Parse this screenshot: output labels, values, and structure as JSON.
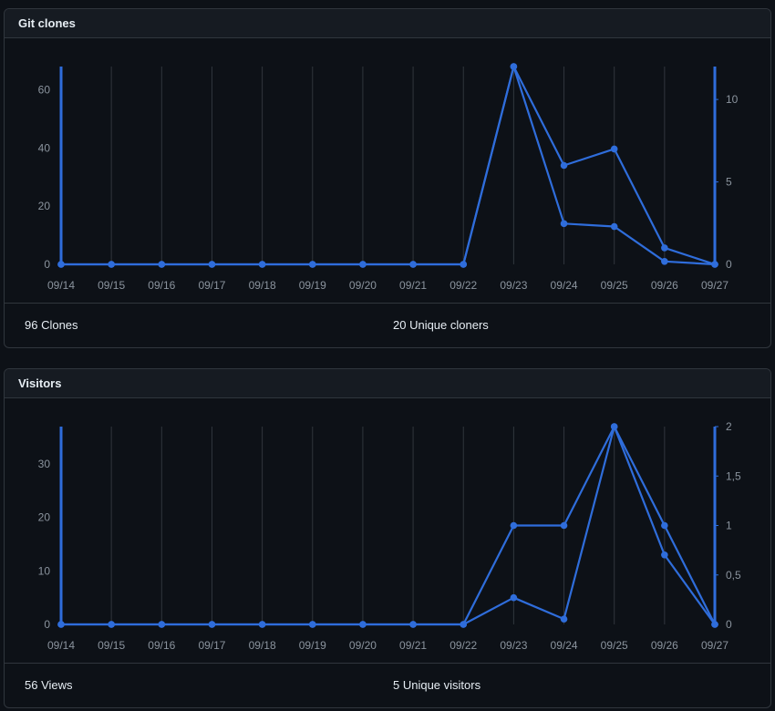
{
  "colors": {
    "line": "#2f6ddb",
    "grid": "#30363d",
    "text": "#8b949e",
    "bg": "#0d1117",
    "panel_header": "#161b22"
  },
  "clones_panel": {
    "title": "Git clones",
    "stat_total": "96 Clones",
    "stat_unique": "20 Unique cloners"
  },
  "visitors_panel": {
    "title": "Visitors",
    "stat_total": "56 Views",
    "stat_unique": "5 Unique visitors"
  },
  "chart_data": [
    {
      "type": "line",
      "categories": [
        "09/14",
        "09/15",
        "09/16",
        "09/17",
        "09/18",
        "09/19",
        "09/20",
        "09/21",
        "09/22",
        "09/23",
        "09/24",
        "09/25",
        "09/26",
        "09/27"
      ],
      "series": [
        {
          "axis": "left",
          "values": [
            0,
            0,
            0,
            0,
            0,
            0,
            0,
            0,
            0,
            68,
            14,
            13,
            1,
            0
          ]
        },
        {
          "axis": "right",
          "values": [
            0,
            0,
            0,
            0,
            0,
            0,
            0,
            0,
            0,
            12,
            6,
            7,
            1,
            0
          ]
        }
      ],
      "ylim_left": [
        0,
        68
      ],
      "yticks_left": [
        0,
        20,
        40,
        60
      ],
      "ylim_right": [
        0,
        12
      ],
      "yticks_right": [
        "0",
        "5",
        "10"
      ],
      "grid": true
    },
    {
      "type": "line",
      "categories": [
        "09/14",
        "09/15",
        "09/16",
        "09/17",
        "09/18",
        "09/19",
        "09/20",
        "09/21",
        "09/22",
        "09/23",
        "09/24",
        "09/25",
        "09/26",
        "09/27"
      ],
      "series": [
        {
          "axis": "left",
          "values": [
            0,
            0,
            0,
            0,
            0,
            0,
            0,
            0,
            0,
            5,
            1,
            37,
            13,
            0
          ]
        },
        {
          "axis": "right",
          "values": [
            0,
            0,
            0,
            0,
            0,
            0,
            0,
            0,
            0,
            1,
            1,
            2,
            1,
            0
          ]
        }
      ],
      "ylim_left": [
        0,
        37
      ],
      "yticks_left": [
        0,
        10,
        20,
        30
      ],
      "ylim_right": [
        0,
        2
      ],
      "yticks_right": [
        "0",
        "0,5",
        "1",
        "1,5",
        "2"
      ],
      "grid": true
    }
  ]
}
